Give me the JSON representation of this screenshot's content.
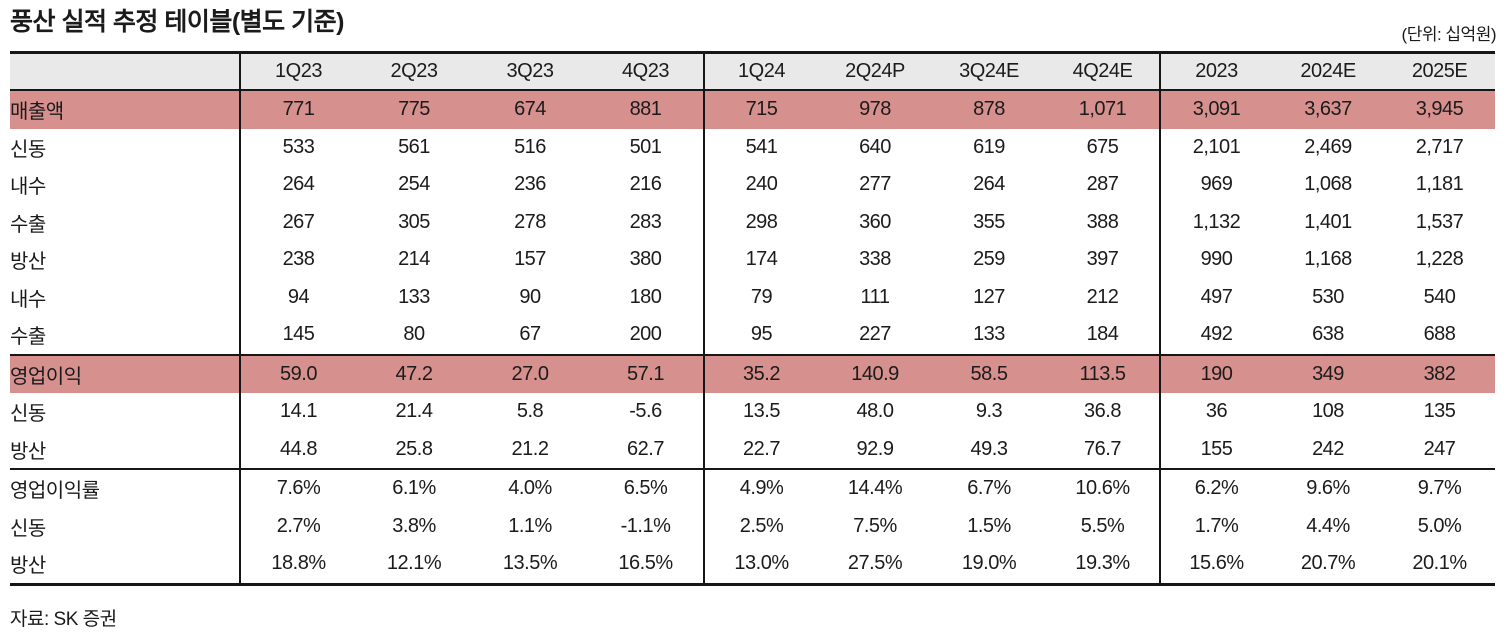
{
  "header": {
    "title": "풍산 실적 추정 테이블(별도 기준)",
    "unit_note": "(단위: 십억원)"
  },
  "colors": {
    "highlight_row": "#d6908e",
    "header_row": "#e9e9e9",
    "border": "#161616"
  },
  "table": {
    "corner_label": "",
    "columns": [
      "1Q23",
      "2Q23",
      "3Q23",
      "4Q23",
      "1Q24",
      "2Q24P",
      "3Q24E",
      "4Q24E",
      "2023",
      "2024E",
      "2025E"
    ],
    "group_end_column_indexes": [
      3,
      7
    ],
    "rows": [
      {
        "label": "매출액",
        "indent": 0,
        "highlight": true,
        "section_start": false,
        "values": [
          "771",
          "775",
          "674",
          "881",
          "715",
          "978",
          "878",
          "1,071",
          "3,091",
          "3,637",
          "3,945"
        ]
      },
      {
        "label": "신동",
        "indent": 1,
        "highlight": false,
        "section_start": false,
        "values": [
          "533",
          "561",
          "516",
          "501",
          "541",
          "640",
          "619",
          "675",
          "2,101",
          "2,469",
          "2,717"
        ]
      },
      {
        "label": "내수",
        "indent": 2,
        "highlight": false,
        "section_start": false,
        "values": [
          "264",
          "254",
          "236",
          "216",
          "240",
          "277",
          "264",
          "287",
          "969",
          "1,068",
          "1,181"
        ]
      },
      {
        "label": "수출",
        "indent": 2,
        "highlight": false,
        "section_start": false,
        "values": [
          "267",
          "305",
          "278",
          "283",
          "298",
          "360",
          "355",
          "388",
          "1,132",
          "1,401",
          "1,537"
        ]
      },
      {
        "label": "방산",
        "indent": 1,
        "highlight": false,
        "section_start": false,
        "values": [
          "238",
          "214",
          "157",
          "380",
          "174",
          "338",
          "259",
          "397",
          "990",
          "1,168",
          "1,228"
        ]
      },
      {
        "label": "내수",
        "indent": 2,
        "highlight": false,
        "section_start": false,
        "values": [
          "94",
          "133",
          "90",
          "180",
          "79",
          "111",
          "127",
          "212",
          "497",
          "530",
          "540"
        ]
      },
      {
        "label": "수출",
        "indent": 2,
        "highlight": false,
        "section_start": false,
        "values": [
          "145",
          "80",
          "67",
          "200",
          "95",
          "227",
          "133",
          "184",
          "492",
          "638",
          "688"
        ]
      },
      {
        "label": "영업이익",
        "indent": 0,
        "highlight": true,
        "section_start": true,
        "values": [
          "59.0",
          "47.2",
          "27.0",
          "57.1",
          "35.2",
          "140.9",
          "58.5",
          "113.5",
          "190",
          "349",
          "382"
        ]
      },
      {
        "label": "신동",
        "indent": 1,
        "highlight": false,
        "section_start": false,
        "values": [
          "14.1",
          "21.4",
          "5.8",
          "-5.6",
          "13.5",
          "48.0",
          "9.3",
          "36.8",
          "36",
          "108",
          "135"
        ]
      },
      {
        "label": "방산",
        "indent": 1,
        "highlight": false,
        "section_start": false,
        "values": [
          "44.8",
          "25.8",
          "21.2",
          "62.7",
          "22.7",
          "92.9",
          "49.3",
          "76.7",
          "155",
          "242",
          "247"
        ]
      },
      {
        "label": "영업이익률",
        "indent": 0,
        "highlight": false,
        "section_start": true,
        "values": [
          "7.6%",
          "6.1%",
          "4.0%",
          "6.5%",
          "4.9%",
          "14.4%",
          "6.7%",
          "10.6%",
          "6.2%",
          "9.6%",
          "9.7%"
        ]
      },
      {
        "label": "신동",
        "indent": 1,
        "highlight": false,
        "section_start": false,
        "values": [
          "2.7%",
          "3.8%",
          "1.1%",
          "-1.1%",
          "2.5%",
          "7.5%",
          "1.5%",
          "5.5%",
          "1.7%",
          "4.4%",
          "5.0%"
        ]
      },
      {
        "label": "방산",
        "indent": 1,
        "highlight": false,
        "section_start": false,
        "values": [
          "18.8%",
          "12.1%",
          "13.5%",
          "16.5%",
          "13.0%",
          "27.5%",
          "19.0%",
          "19.3%",
          "15.6%",
          "20.7%",
          "20.1%"
        ]
      }
    ]
  },
  "footer": {
    "source": "자료: SK 증권"
  }
}
